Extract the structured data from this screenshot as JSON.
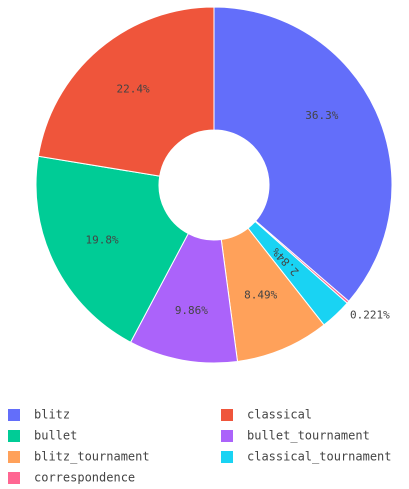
{
  "chart_data": {
    "type": "pie",
    "hole": true,
    "legend_position": "bottom",
    "slices": [
      {
        "label": "blitz",
        "value": 36.3,
        "text": "36.3%",
        "color": "#636efa"
      },
      {
        "label": "correspondence",
        "value": 0.221,
        "text": "0.221%",
        "color": "#ff6692"
      },
      {
        "label": "classical_tournament",
        "value": 2.84,
        "text": "2.84%",
        "color": "#19d3f3"
      },
      {
        "label": "blitz_tournament",
        "value": 8.49,
        "text": "8.49%",
        "color": "#ffa15a"
      },
      {
        "label": "bullet_tournament",
        "value": 9.86,
        "text": "9.86%",
        "color": "#ab63fa"
      },
      {
        "label": "bullet",
        "value": 19.8,
        "text": "19.8%",
        "color": "#00cc96"
      },
      {
        "label": "classical",
        "value": 22.4,
        "text": "22.4%",
        "color": "#ef553b"
      }
    ],
    "legend": [
      {
        "label": "blitz",
        "color": "#636efa"
      },
      {
        "label": "classical",
        "color": "#ef553b"
      },
      {
        "label": "bullet",
        "color": "#00cc96"
      },
      {
        "label": "bullet_tournament",
        "color": "#ab63fa"
      },
      {
        "label": "blitz_tournament",
        "color": "#ffa15a"
      },
      {
        "label": "classical_tournament",
        "color": "#19d3f3"
      },
      {
        "label": "correspondence",
        "color": "#ff6692"
      }
    ]
  }
}
